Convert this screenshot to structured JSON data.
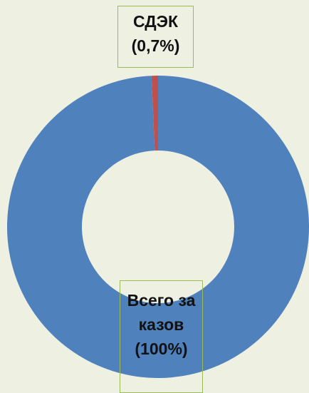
{
  "chart_data": {
    "type": "donut",
    "categories": [
      "СДЭК",
      "Всего заказов"
    ],
    "values": [
      0.7,
      100
    ],
    "value_labels": [
      "(0,7%)",
      "(100%)"
    ],
    "colors": [
      "#c0504d",
      "#4f81bd"
    ]
  }
}
